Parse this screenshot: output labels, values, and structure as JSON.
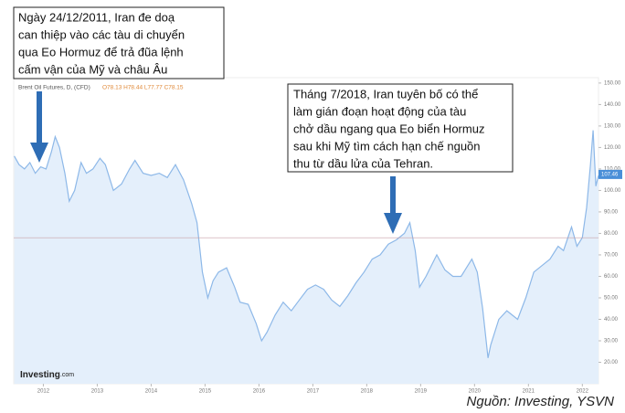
{
  "chart_data": {
    "type": "area",
    "title": "Brent Oil Futures, D, (CFD)",
    "ohlc": "O78.13 H78.44 L77.77 C78.15",
    "x": [
      2011.46,
      2011.55,
      2011.65,
      2011.75,
      2011.85,
      2011.95,
      2012.05,
      2012.15,
      2012.22,
      2012.3,
      2012.4,
      2012.48,
      2012.58,
      2012.7,
      2012.8,
      2012.92,
      2013.05,
      2013.15,
      2013.3,
      2013.45,
      2013.6,
      2013.7,
      2013.85,
      2014.0,
      2014.15,
      2014.3,
      2014.45,
      2014.6,
      2014.75,
      2014.85,
      2014.95,
      2015.05,
      2015.15,
      2015.25,
      2015.4,
      2015.55,
      2015.65,
      2015.8,
      2015.95,
      2016.05,
      2016.15,
      2016.3,
      2016.45,
      2016.6,
      2016.75,
      2016.9,
      2017.05,
      2017.2,
      2017.35,
      2017.5,
      2017.65,
      2017.8,
      2017.95,
      2018.1,
      2018.25,
      2018.4,
      2018.55,
      2018.7,
      2018.8,
      2018.9,
      2018.98,
      2019.1,
      2019.3,
      2019.45,
      2019.6,
      2019.75,
      2019.95,
      2020.05,
      2020.15,
      2020.25,
      2020.3,
      2020.45,
      2020.6,
      2020.8,
      2020.95,
      2021.1,
      2021.25,
      2021.4,
      2021.55,
      2021.65,
      2021.8,
      2021.9,
      2022.0,
      2022.08,
      2022.15,
      2022.2,
      2022.25,
      2022.3
    ],
    "values": [
      116,
      112,
      110,
      113,
      108,
      111,
      110,
      118,
      125,
      120,
      108,
      95,
      100,
      113,
      108,
      110,
      115,
      112,
      100,
      103,
      110,
      114,
      108,
      107,
      108,
      106,
      112,
      105,
      94,
      85,
      62,
      50,
      58,
      62,
      64,
      55,
      48,
      47,
      38,
      30,
      34,
      42,
      48,
      44,
      49,
      54,
      56,
      54,
      49,
      46,
      51,
      57,
      62,
      68,
      70,
      75,
      77,
      80,
      85,
      72,
      55,
      60,
      70,
      63,
      60,
      60,
      68,
      62,
      45,
      22,
      28,
      40,
      44,
      40,
      50,
      62,
      65,
      68,
      74,
      72,
      83,
      74,
      78,
      92,
      112,
      128,
      102,
      107
    ],
    "color": "#8db8e8",
    "fill": "#e4effb",
    "xlim": [
      2011.45,
      2022.3
    ],
    "xticks": [
      2012,
      2013,
      2014,
      2015,
      2016,
      2017,
      2018,
      2019,
      2020,
      2021,
      2022
    ],
    "ylim": [
      10,
      152.5
    ],
    "yticks": [
      {
        "value": 20,
        "label": "20.00"
      },
      {
        "value": 30,
        "label": "30.00"
      },
      {
        "value": 40,
        "label": "40.00"
      },
      {
        "value": 50,
        "label": "50.00"
      },
      {
        "value": 60,
        "label": "60.00"
      },
      {
        "value": 70,
        "label": "70.00"
      },
      {
        "value": 80,
        "label": "80.00"
      },
      {
        "value": 90,
        "label": "90.00"
      },
      {
        "value": 100,
        "label": "100.00"
      },
      {
        "value": 110,
        "label": "110.00"
      },
      {
        "value": 120,
        "label": "120.00"
      },
      {
        "value": 130,
        "label": "130.00"
      },
      {
        "value": 140,
        "label": "140.00"
      },
      {
        "value": 150,
        "label": "150.00"
      }
    ],
    "last_price": {
      "value": 107.46,
      "label": "107.46"
    },
    "reference_line": 78,
    "annotations": [
      {
        "lines": [
          "Ngày 24/12/2011, Iran đe doạ",
          "can thiệp vào các tàu di chuyển",
          "qua Eo Hormuz để trả đũa lệnh",
          "cấm vận của Mỹ và châu Âu"
        ]
      },
      {
        "lines": [
          "Tháng 7/2018, Iran tuyên bố có thể",
          "làm gián đoạn hoạt động của tàu",
          "chở dầu ngang qua Eo biển Hormuz",
          "sau khi Mỹ tìm cách hạn chế nguồn",
          "thu từ dầu lửa của Tehran."
        ]
      }
    ],
    "logo": [
      "Investing",
      ".com"
    ],
    "source": "Nguồn: Investing, YSVN"
  }
}
